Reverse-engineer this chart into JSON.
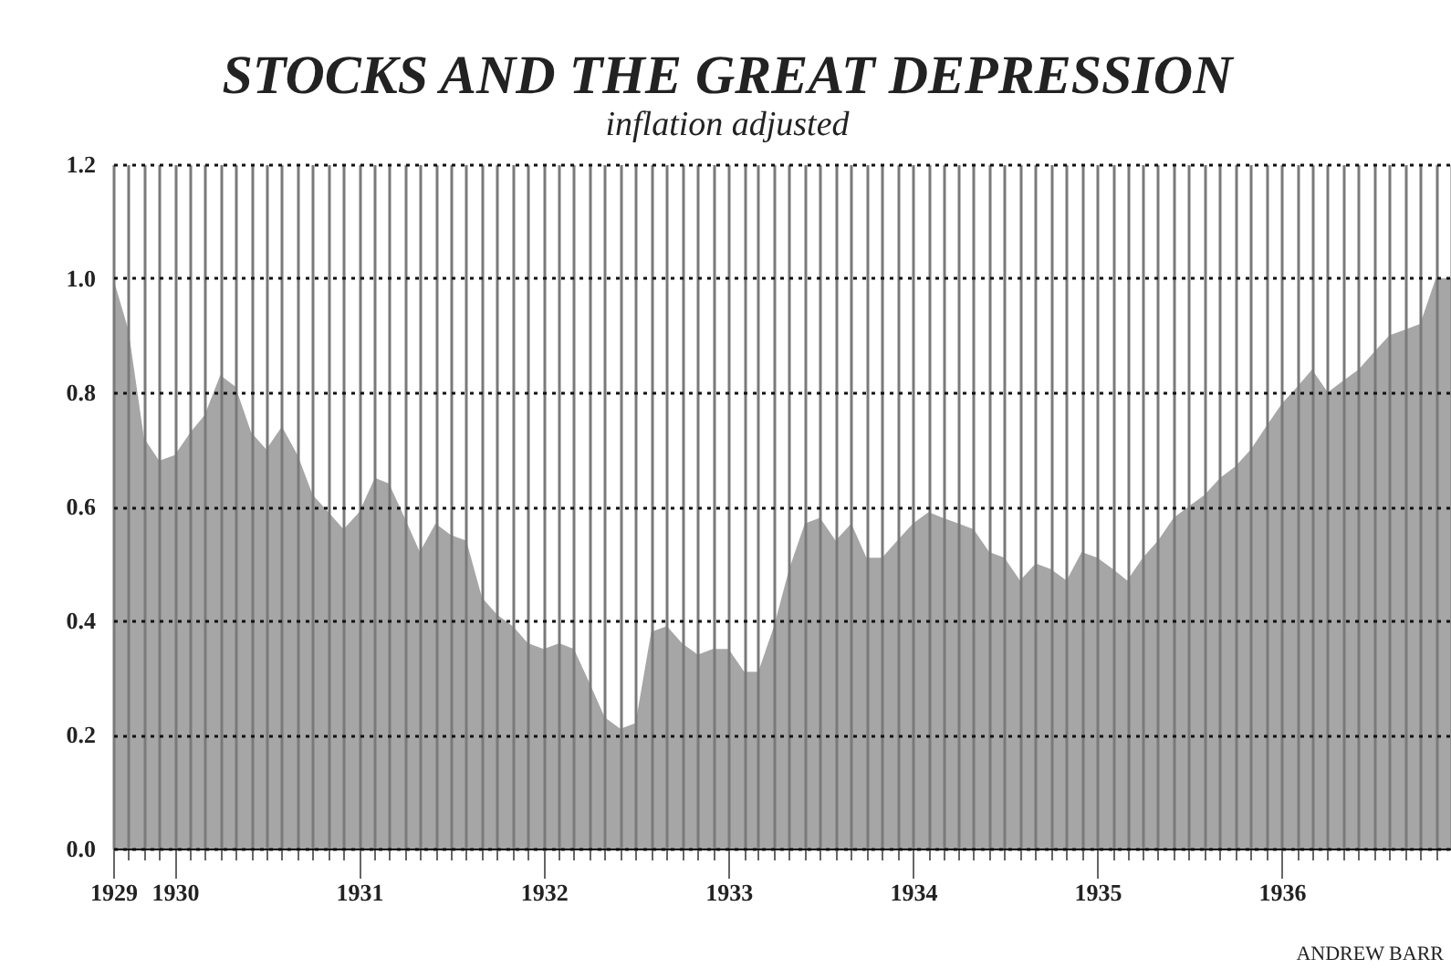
{
  "chart_data": {
    "type": "area",
    "title": "STOCKS AND THE GREAT DEPRESSION",
    "subtitle": "inflation adjusted",
    "x": [
      "1929-09",
      "1929-10",
      "1929-11",
      "1929-12",
      "1930-01",
      "1930-02",
      "1930-03",
      "1930-04",
      "1930-05",
      "1930-06",
      "1930-07",
      "1930-08",
      "1930-09",
      "1930-10",
      "1930-11",
      "1930-12",
      "1931-01",
      "1931-02",
      "1931-03",
      "1931-04",
      "1931-05",
      "1931-06",
      "1931-07",
      "1931-08",
      "1931-09",
      "1931-10",
      "1931-11",
      "1931-12",
      "1932-01",
      "1932-02",
      "1932-03",
      "1932-04",
      "1932-05",
      "1932-06",
      "1932-07",
      "1932-08",
      "1932-09",
      "1932-10",
      "1932-11",
      "1932-12",
      "1933-01",
      "1933-02",
      "1933-03",
      "1933-04",
      "1933-05",
      "1933-06",
      "1933-07",
      "1933-08",
      "1933-09",
      "1933-10",
      "1933-11",
      "1933-12",
      "1934-01",
      "1934-02",
      "1934-03",
      "1934-04",
      "1934-05",
      "1934-06",
      "1934-07",
      "1934-08",
      "1934-09",
      "1934-10",
      "1934-11",
      "1934-12",
      "1935-01",
      "1935-02",
      "1935-03",
      "1935-04",
      "1935-05",
      "1935-06",
      "1935-07",
      "1935-08",
      "1935-09",
      "1935-10",
      "1935-11",
      "1935-12",
      "1936-01",
      "1936-02",
      "1936-03",
      "1936-04",
      "1936-05",
      "1936-06",
      "1936-07",
      "1936-08",
      "1936-09",
      "1936-10",
      "1936-11",
      "1936-12"
    ],
    "series": [
      {
        "color": "#a6a6a6",
        "values": [
          1.0,
          0.91,
          0.72,
          0.68,
          0.69,
          0.73,
          0.76,
          0.83,
          0.81,
          0.73,
          0.7,
          0.74,
          0.69,
          0.62,
          0.59,
          0.56,
          0.59,
          0.65,
          0.64,
          0.58,
          0.52,
          0.57,
          0.55,
          0.54,
          0.44,
          0.41,
          0.39,
          0.36,
          0.35,
          0.36,
          0.35,
          0.29,
          0.23,
          0.21,
          0.22,
          0.38,
          0.39,
          0.36,
          0.34,
          0.35,
          0.35,
          0.31,
          0.31,
          0.39,
          0.49,
          0.57,
          0.58,
          0.54,
          0.57,
          0.51,
          0.51,
          0.54,
          0.57,
          0.59,
          0.58,
          0.57,
          0.56,
          0.52,
          0.51,
          0.47,
          0.5,
          0.49,
          0.47,
          0.52,
          0.51,
          0.49,
          0.47,
          0.51,
          0.54,
          0.58,
          0.6,
          0.62,
          0.65,
          0.67,
          0.7,
          0.74,
          0.78,
          0.81,
          0.84,
          0.8,
          0.82,
          0.84,
          0.87,
          0.9,
          0.91,
          0.92,
          1.0,
          1.0
        ]
      }
    ],
    "xlim": [
      "1929-09",
      "1936-12"
    ],
    "xticks": [
      {
        "value": "1929-09",
        "label": "1929"
      },
      {
        "value": "1930-01",
        "label": "1930"
      },
      {
        "value": "1931-01",
        "label": "1931"
      },
      {
        "value": "1932-01",
        "label": "1932"
      },
      {
        "value": "1933-01",
        "label": "1933"
      },
      {
        "value": "1934-01",
        "label": "1934"
      },
      {
        "value": "1935-01",
        "label": "1935"
      },
      {
        "value": "1936-01",
        "label": "1936"
      }
    ],
    "ylim": [
      0,
      1.2
    ],
    "yticks": [
      {
        "value": 0,
        "label": "0.0"
      },
      {
        "value": 0.2,
        "label": "0.2"
      },
      {
        "value": 0.4,
        "label": "0.4"
      },
      {
        "value": 0.6,
        "label": "0.6"
      },
      {
        "value": 0.8,
        "label": "0.8"
      },
      {
        "value": 1,
        "label": "1.0"
      },
      {
        "value": 1.2,
        "label": "1.2"
      }
    ],
    "grid": true,
    "annotations": [
      "ANDREW BARR"
    ]
  }
}
